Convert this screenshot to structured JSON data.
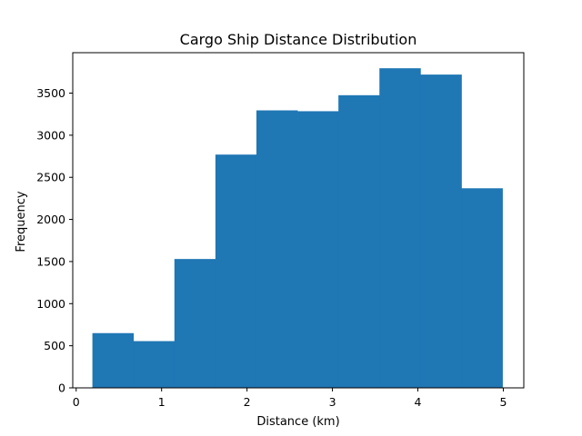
{
  "chart_data": {
    "type": "bar",
    "title": "Cargo Ship Distance Distribution",
    "xlabel": "Distance (km)",
    "ylabel": "Frequency",
    "xlim": [
      -0.04,
      5.24
    ],
    "ylim": [
      0,
      3980
    ],
    "xticks": [
      0,
      1,
      2,
      3,
      4,
      5
    ],
    "yticks": [
      0,
      500,
      1000,
      1500,
      2000,
      2500,
      3000,
      3500
    ],
    "bin_edges": [
      0.19,
      0.67,
      1.15,
      1.63,
      2.11,
      2.59,
      3.07,
      3.55,
      4.03,
      4.51,
      4.99
    ],
    "values": [
      650,
      555,
      1530,
      2770,
      3295,
      3285,
      3475,
      3795,
      3720,
      2370
    ],
    "bar_color": "#1f77b4",
    "grid": false,
    "legend": "none"
  }
}
